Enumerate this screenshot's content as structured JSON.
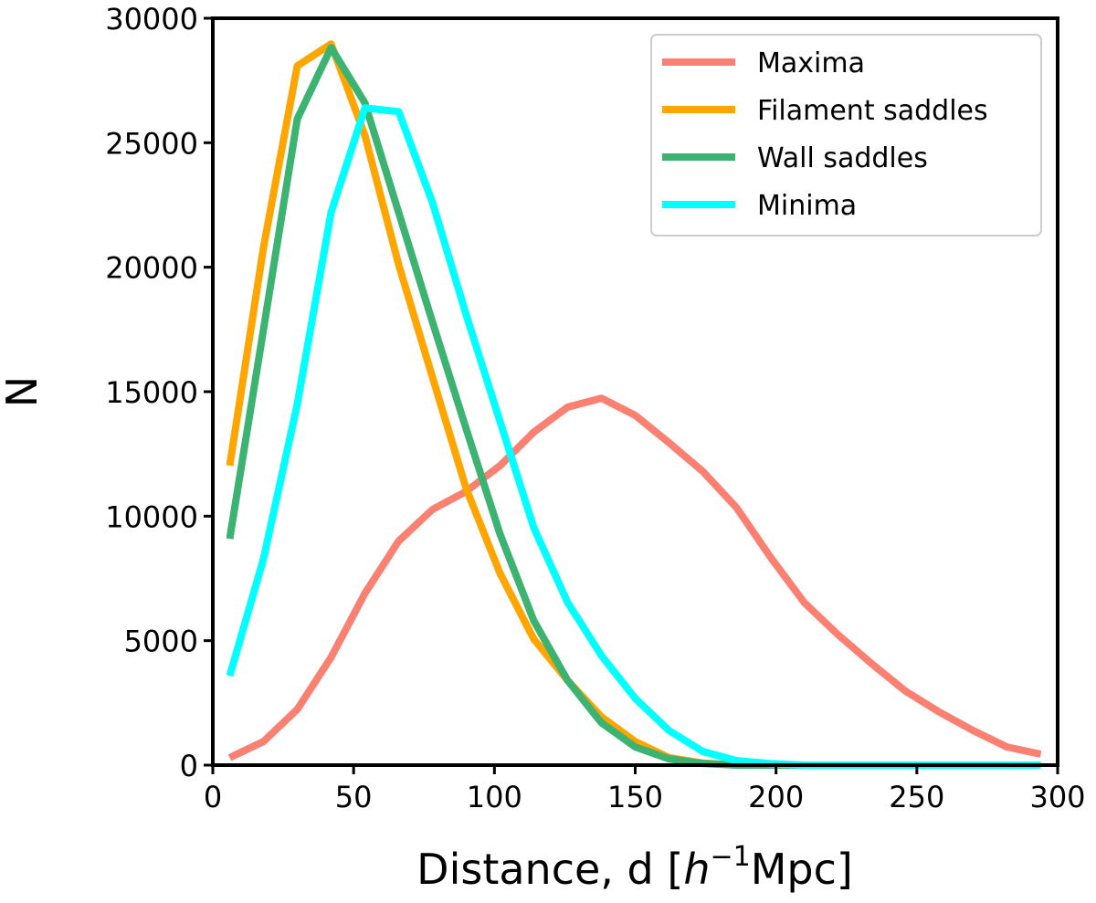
{
  "chart_data": {
    "type": "line",
    "xlabel": "Distance, d [h^-1 Mpc]",
    "xlabel_parts": {
      "prefix": "Distance, d [",
      "italic": "h",
      "sup": "−1",
      "suffix": "Mpc]"
    },
    "ylabel": "N",
    "xlim": [
      0,
      300
    ],
    "ylim": [
      0,
      30000
    ],
    "xticks": [
      0,
      50,
      100,
      150,
      200,
      250,
      300
    ],
    "yticks": [
      0,
      5000,
      10000,
      15000,
      20000,
      25000,
      30000
    ],
    "grid": false,
    "legend_position": "top-right",
    "x": [
      6,
      18,
      30,
      42,
      54,
      66,
      78,
      90,
      102,
      114,
      126,
      138,
      150,
      162,
      174,
      186,
      198,
      210,
      222,
      234,
      246,
      258,
      270,
      282,
      294
    ],
    "series": [
      {
        "name": "Maxima",
        "color": "#fa8072",
        "values": [
          300,
          950,
          2240,
          4330,
          6900,
          9000,
          10270,
          11000,
          12030,
          13380,
          14380,
          14740,
          14050,
          12950,
          11800,
          10340,
          8360,
          6530,
          5240,
          4070,
          2970,
          2130,
          1390,
          730,
          440
        ]
      },
      {
        "name": "Filament saddles",
        "color": "#ffa500",
        "values": [
          12030,
          20800,
          28090,
          28970,
          25300,
          20100,
          15580,
          11100,
          7700,
          5060,
          3400,
          1940,
          950,
          300,
          80,
          0,
          0,
          0,
          0,
          0,
          0,
          0,
          0,
          0,
          0
        ]
      },
      {
        "name": "Wall saddles",
        "color": "#3cb371",
        "values": [
          9090,
          17500,
          25960,
          28820,
          26600,
          22200,
          17800,
          13500,
          9280,
          5800,
          3400,
          1700,
          730,
          250,
          70,
          0,
          0,
          0,
          0,
          0,
          0,
          0,
          0,
          0,
          0
        ]
      },
      {
        "name": "Minima",
        "color": "#00ffff",
        "values": [
          3590,
          8290,
          14500,
          22200,
          26400,
          26250,
          22600,
          18080,
          13800,
          9530,
          6530,
          4400,
          2680,
          1390,
          550,
          180,
          60,
          0,
          0,
          0,
          0,
          0,
          0,
          0,
          0
        ]
      }
    ]
  }
}
